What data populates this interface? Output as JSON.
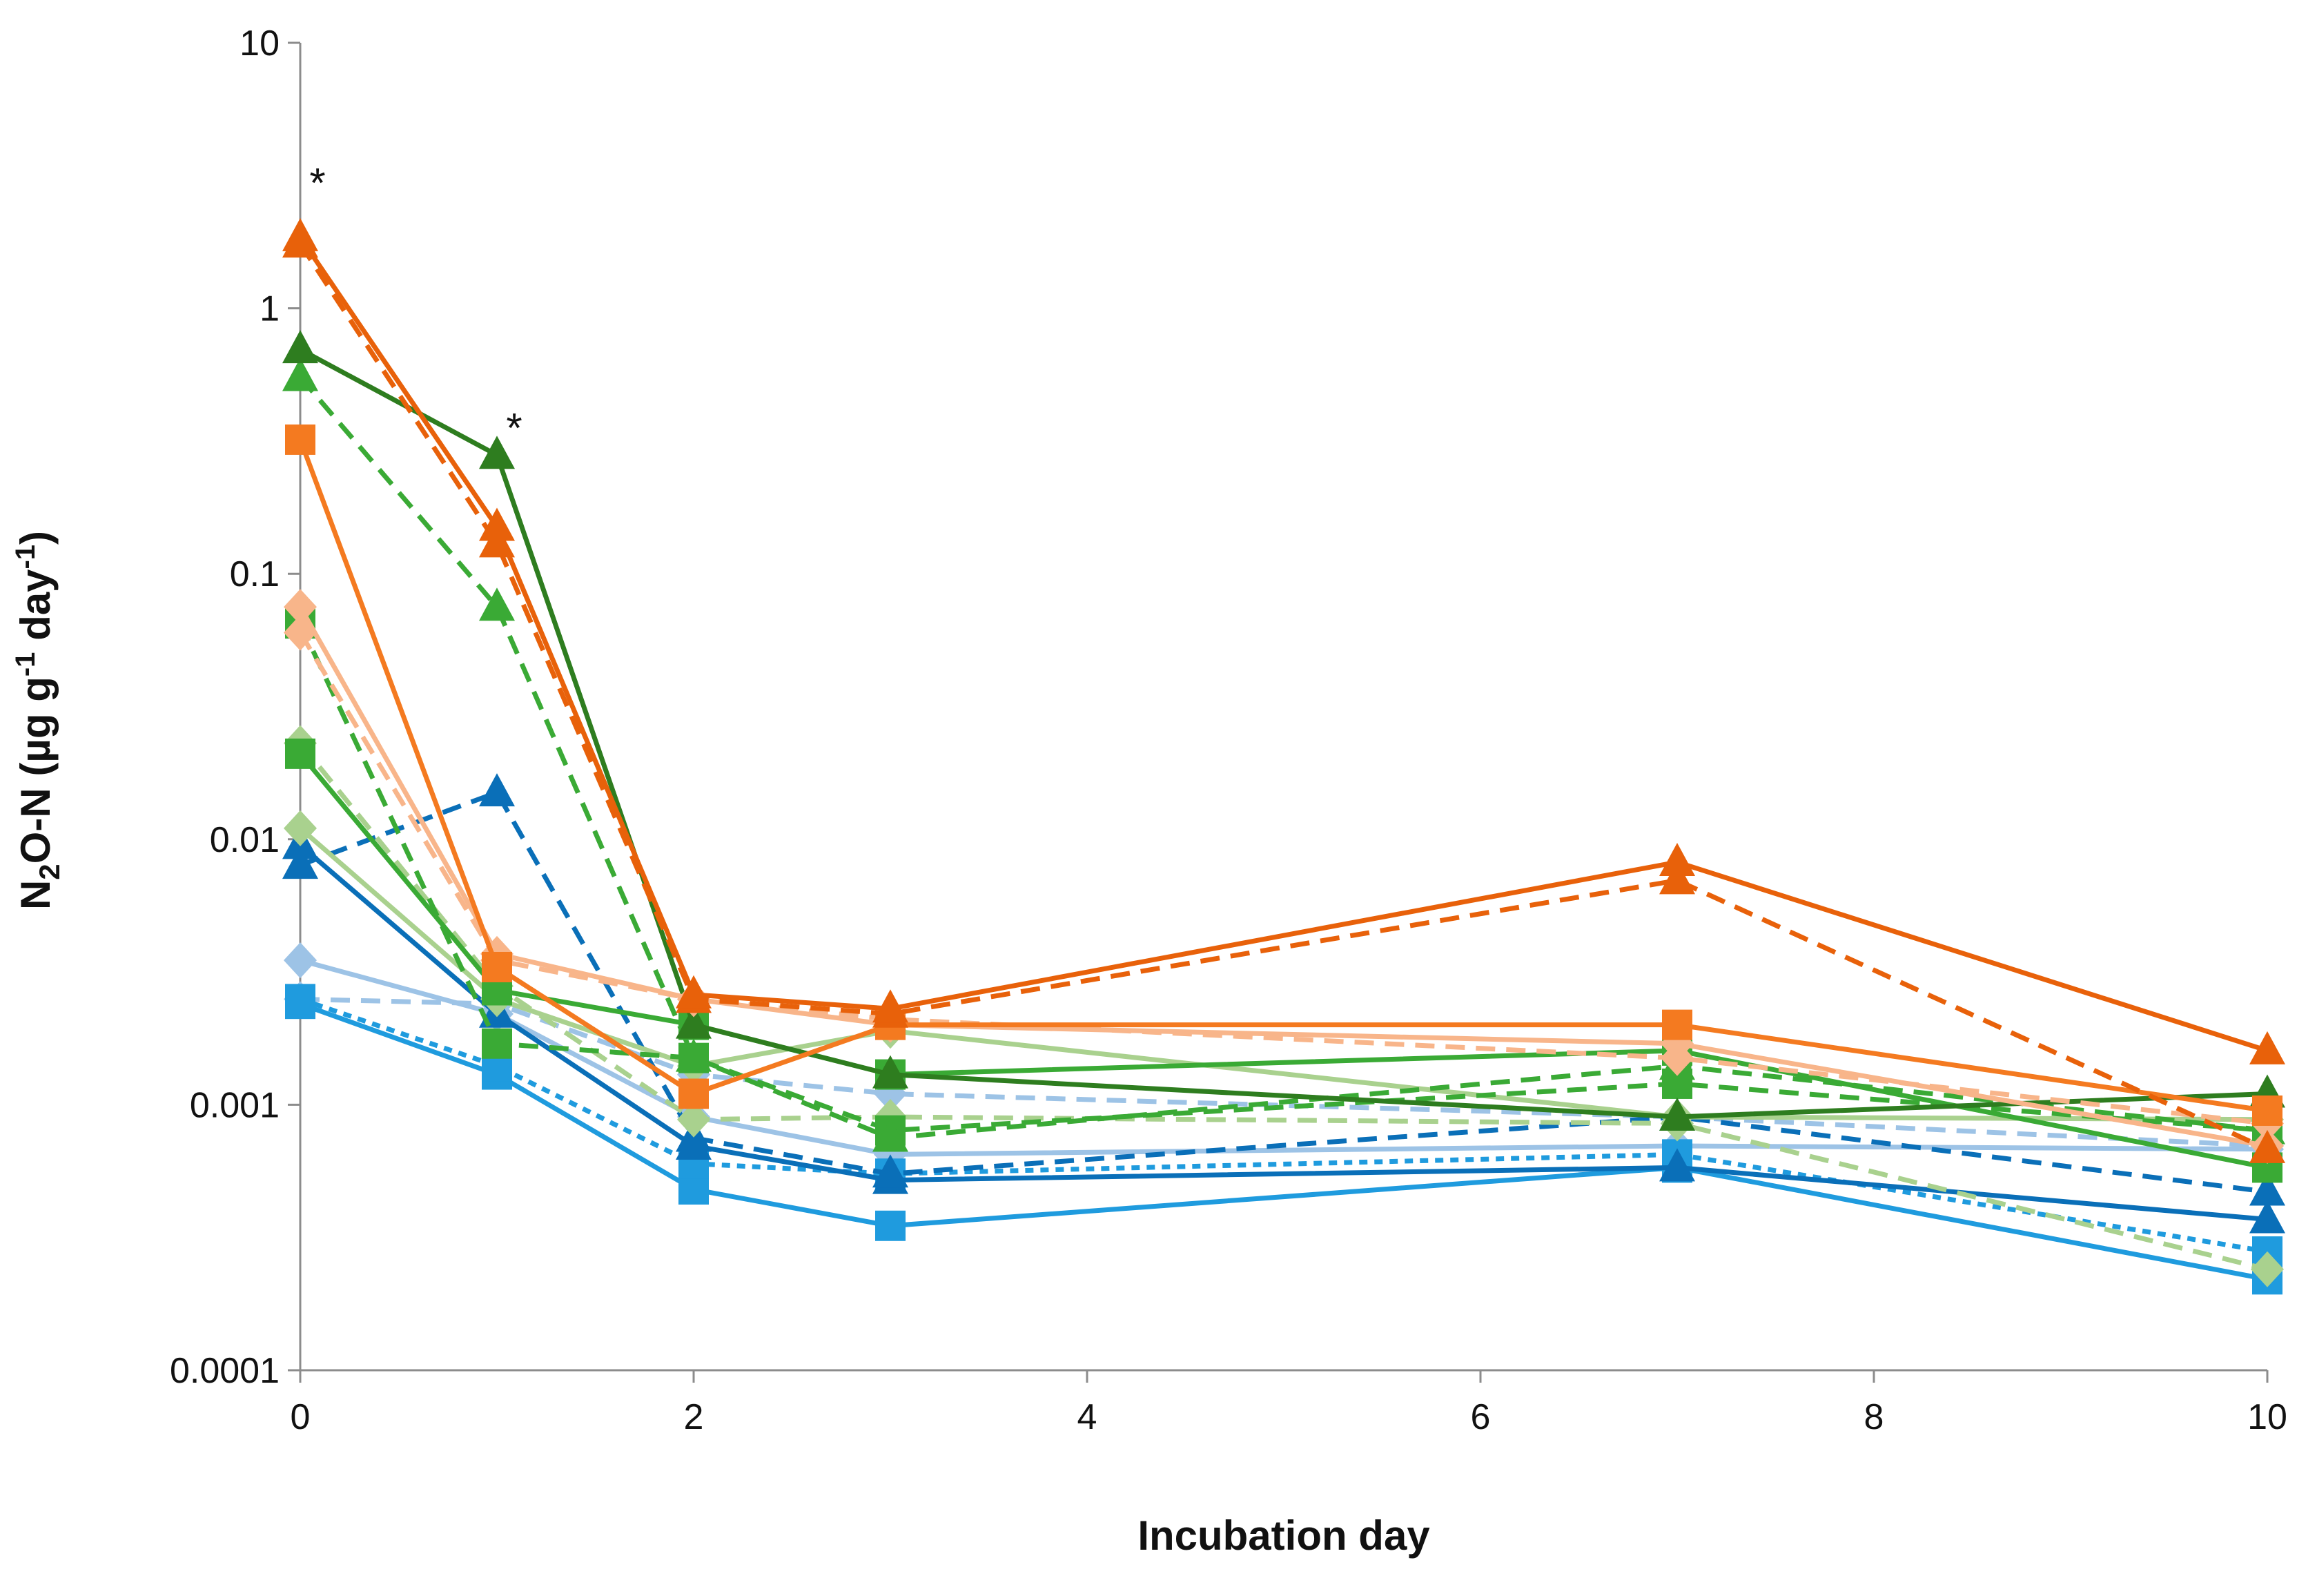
{
  "chart_data": {
    "type": "line",
    "title": "",
    "xlabel": "Incubation day",
    "ylabel_parts": [
      "N",
      "2",
      "O-N (µg g",
      "-1",
      " day",
      "-1",
      ")"
    ],
    "xlim": [
      0,
      10
    ],
    "xticks": [
      0,
      2,
      4,
      6,
      8,
      10
    ],
    "yscale": "log",
    "ylim": [
      0.0001,
      10
    ],
    "yticks": [
      {
        "value": 0.0001,
        "label": "0.0001"
      },
      {
        "value": 0.001,
        "label": "0.001"
      },
      {
        "value": 0.01,
        "label": "0.01"
      },
      {
        "value": 0.1,
        "label": "0.1"
      },
      {
        "value": 1,
        "label": "1"
      },
      {
        "value": 10,
        "label": "10"
      }
    ],
    "grid": false,
    "legend": "none",
    "x": [
      0,
      1,
      2,
      3,
      7,
      10
    ],
    "annotations": [
      {
        "text": "*",
        "x": 0,
        "y": 3.1
      },
      {
        "text": "*",
        "x": 1,
        "y": 0.37
      }
    ],
    "series": [
      {
        "name": "light-blue-diamond-solid",
        "color": "#9DC3E6",
        "marker": "diamond",
        "dash": "solid",
        "values": [
          0.0035,
          0.0022,
          0.0009,
          0.00065,
          0.0007,
          0.00068
        ]
      },
      {
        "name": "light-blue-diamond-dashed",
        "color": "#9DC3E6",
        "marker": "diamond",
        "dash": "long",
        "values": [
          0.0025,
          0.0024,
          0.0013,
          0.0011,
          0.0009,
          0.0007
        ]
      },
      {
        "name": "blue-square-solid",
        "color": "#1F9BDE",
        "marker": "square",
        "dash": "solid",
        "values": [
          0.0024,
          0.0013,
          0.00048,
          0.00035,
          0.00058,
          0.00022
        ]
      },
      {
        "name": "blue-square-dotted",
        "color": "#1F9BDE",
        "marker": "square",
        "dash": "short",
        "values": [
          0.0025,
          0.0014,
          0.0006,
          0.00055,
          0.00065,
          0.00028
        ]
      },
      {
        "name": "dark-blue-triangle-solid",
        "color": "#0A6FB8",
        "marker": "triangle",
        "dash": "solid",
        "values": [
          0.0095,
          0.0022,
          0.0007,
          0.00052,
          0.00058,
          0.00037
        ]
      },
      {
        "name": "dark-blue-triangle-dashed",
        "color": "#0A6FB8",
        "marker": "triangle",
        "dash": "long",
        "values": [
          0.008,
          0.015,
          0.00075,
          0.00055,
          0.0009,
          0.00047
        ]
      },
      {
        "name": "light-green-diamond-solid",
        "color": "#A9D18E",
        "marker": "diamond",
        "dash": "solid",
        "values": [
          0.011,
          0.0025,
          0.0014,
          0.0019,
          0.0009,
          0.00088
        ]
      },
      {
        "name": "light-green-diamond-dashed",
        "color": "#A9D18E",
        "marker": "diamond",
        "dash": "long",
        "values": [
          0.023,
          0.0028,
          0.00088,
          0.0009,
          0.00085,
          0.00024
        ]
      },
      {
        "name": "green-square-solid",
        "color": "#3AAA35",
        "marker": "square",
        "dash": "solid",
        "values": [
          0.021,
          0.0027,
          0.002,
          0.0013,
          0.0016,
          0.00058
        ]
      },
      {
        "name": "green-square-dashed",
        "color": "#3AAA35",
        "marker": "square",
        "dash": "long",
        "values": [
          0.065,
          0.0017,
          0.0015,
          0.0008,
          0.0012,
          0.0008
        ]
      },
      {
        "name": "green-triangle-dashed",
        "color": "#3AAA35",
        "marker": "triangle",
        "dash": "long",
        "values": [
          0.55,
          0.075,
          0.0015,
          0.00075,
          0.0014,
          0.0008
        ]
      },
      {
        "name": "dark-green-triangle-solid",
        "color": "#2E7D1F",
        "marker": "triangle",
        "dash": "solid",
        "values": [
          0.7,
          0.28,
          0.002,
          0.0013,
          0.0009,
          0.0011
        ]
      },
      {
        "name": "light-orange-diamond-solid",
        "color": "#F8B58A",
        "marker": "diamond",
        "dash": "solid",
        "values": [
          0.075,
          0.0037,
          0.0025,
          0.002,
          0.0017,
          0.0007
        ]
      },
      {
        "name": "light-orange-diamond-dashed",
        "color": "#F8B58A",
        "marker": "diamond",
        "dash": "long",
        "values": [
          0.06,
          0.0035,
          0.0025,
          0.0021,
          0.0015,
          0.00085
        ]
      },
      {
        "name": "orange-square-solid",
        "color": "#F47A20",
        "marker": "square",
        "dash": "solid",
        "values": [
          0.32,
          0.0033,
          0.0011,
          0.002,
          0.002,
          0.00095
        ]
      },
      {
        "name": "orange-triangle-dashed",
        "color": "#E8610A",
        "marker": "triangle",
        "dash": "long",
        "values": [
          1.75,
          0.13,
          0.0025,
          0.0022,
          0.007,
          0.00068
        ]
      },
      {
        "name": "orange-triangle-solid",
        "color": "#E8610A",
        "marker": "triangle",
        "dash": "solid",
        "values": [
          1.85,
          0.15,
          0.0026,
          0.0023,
          0.0082,
          0.0016
        ]
      }
    ]
  }
}
